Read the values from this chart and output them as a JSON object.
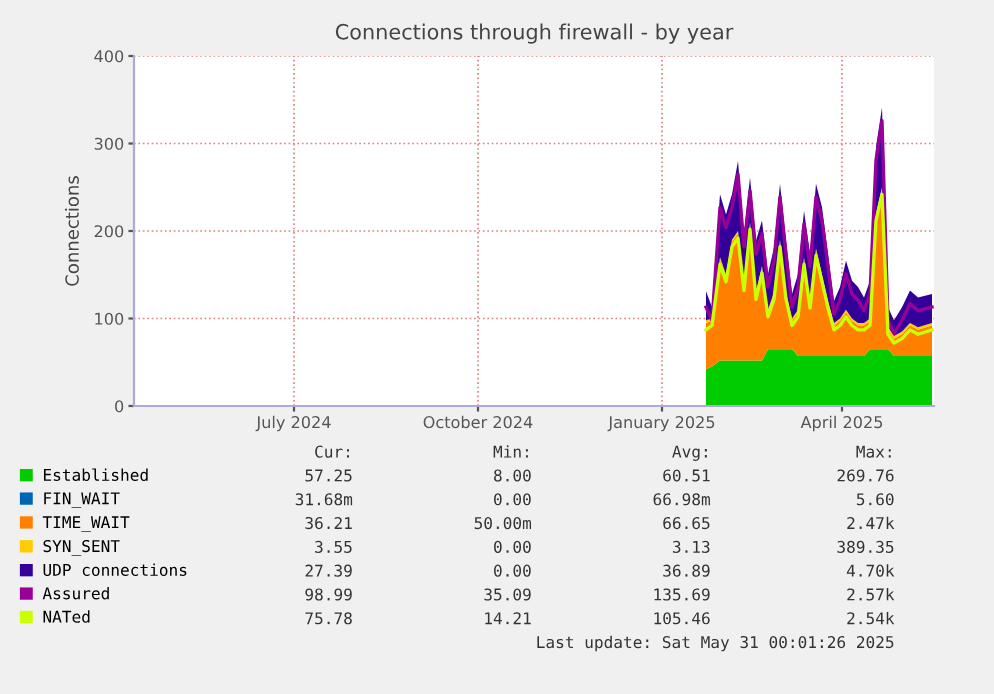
{
  "chart_data": {
    "type": "area",
    "title": "Connections through firewall - by year",
    "ylabel": "Connections",
    "stacked": true,
    "x": [
      "2025-02-07",
      "2025-02-10",
      "2025-02-14",
      "2025-02-17",
      "2025-02-20",
      "2025-02-23",
      "2025-02-26",
      "2025-03-01",
      "2025-03-04",
      "2025-03-07",
      "2025-03-10",
      "2025-03-13",
      "2025-03-16",
      "2025-03-19",
      "2025-03-22",
      "2025-03-25",
      "2025-03-28",
      "2025-03-31",
      "2025-04-03",
      "2025-04-06",
      "2025-04-09",
      "2025-04-12",
      "2025-04-15",
      "2025-04-18",
      "2025-04-21",
      "2025-04-24",
      "2025-04-27",
      "2025-04-30",
      "2025-05-03",
      "2025-05-06",
      "2025-05-09",
      "2025-05-12",
      "2025-05-16",
      "2025-05-20",
      "2025-05-24",
      "2025-05-31"
    ],
    "series": [
      {
        "name": "Established",
        "color": "#00cc00",
        "values": [
          42,
          45,
          52,
          52,
          52,
          52,
          52,
          52,
          52,
          52,
          65,
          65,
          65,
          65,
          65,
          57,
          57,
          57,
          57,
          57,
          57,
          57,
          57,
          57,
          57,
          57,
          57,
          65,
          65,
          65,
          65,
          57,
          57,
          57,
          57,
          57
        ]
      },
      {
        "name": "FIN_WAIT",
        "color": "#0066b3",
        "values": [
          null,
          null,
          null,
          null,
          null,
          null,
          null,
          null,
          null,
          null,
          null,
          null,
          null,
          null,
          null,
          null,
          null,
          null,
          null,
          null,
          null,
          null,
          null,
          null,
          null,
          null,
          null,
          null,
          null,
          null,
          null,
          null,
          null,
          null,
          null,
          null
        ]
      },
      {
        "name": "TIME_WAIT",
        "color": "#ff8000",
        "values": [
          53,
          52,
          115,
          95,
          135,
          145,
          85,
          155,
          75,
          105,
          42,
          62,
          122,
          62,
          32,
          50,
          110,
          60,
          120,
          90,
          60,
          35,
          40,
          50,
          40,
          35,
          35,
          32,
          152,
          182,
          22,
          20,
          25,
          35,
          30,
          35
        ]
      },
      {
        "name": "SYN_SENT",
        "color": "#ffcc00",
        "values": [
          3,
          3,
          3,
          3,
          3,
          3,
          3,
          3,
          3,
          3,
          3,
          3,
          3,
          3,
          3,
          3,
          3,
          3,
          3,
          3,
          3,
          3,
          3,
          3,
          3,
          3,
          3,
          3,
          3,
          3,
          3,
          3,
          3,
          3,
          3,
          3
        ]
      },
      {
        "name": "UDP connections",
        "color": "#330099",
        "values": [
          33,
          13,
          72,
          69,
          52,
          80,
          57,
          51,
          59,
          52,
          41,
          51,
          64,
          59,
          28,
          41,
          53,
          54,
          74,
          77,
          54,
          25,
          36,
          56,
          43,
          41,
          29,
          43,
          76,
          91,
          23,
          18,
          28,
          37,
          34,
          33
        ]
      },
      {
        "name": "Assured",
        "type": "line",
        "color": "#990099",
        "values": [
          113,
          98,
          227,
          204,
          227,
          265,
          182,
          246,
          174,
          197,
          136,
          166,
          239,
          174,
          113,
          136,
          208,
          159,
          239,
          212,
          159,
          105,
          121,
          151,
          128,
          121,
          109,
          128,
          281,
          326,
          98,
          83,
          98,
          117,
          109,
          113
        ]
      },
      {
        "name": "NATed",
        "type": "line",
        "color": "#ccff00",
        "values": [
          87,
          92,
          162,
          142,
          182,
          192,
          132,
          202,
          122,
          152,
          102,
          122,
          182,
          122,
          92,
          102,
          162,
          112,
          172,
          142,
          112,
          87,
          92,
          102,
          92,
          87,
          87,
          92,
          212,
          242,
          82,
          72,
          77,
          87,
          82,
          87
        ]
      }
    ],
    "xlim": [
      "2024-04-27",
      "2025-06-01"
    ],
    "xticks": [
      {
        "value": "2024-07-16",
        "label": "July 2024"
      },
      {
        "value": "2024-10-16",
        "label": "October 2024"
      },
      {
        "value": "2025-01-16",
        "label": "January 2025"
      },
      {
        "value": "2025-04-16",
        "label": "April 2025"
      }
    ],
    "ylim": [
      0,
      400
    ],
    "yticks": [
      0,
      100,
      200,
      300,
      400
    ],
    "grid": true,
    "legend": "bottom",
    "annotations": [
      "Cur:",
      "Min:",
      "Avg:",
      "Max:",
      "57.25",
      "8.00",
      "60.51",
      "269.76",
      "31.68m",
      "0.00",
      "66.98m",
      "5.60",
      "36.21",
      "50.00m",
      "66.65",
      "2.47k",
      "3.55",
      "0.00",
      "3.13",
      "389.35",
      "27.39",
      "0.00",
      "36.89",
      "4.70k",
      "98.99",
      "35.09",
      "135.69",
      "2.57k",
      "75.78",
      "14.21",
      "105.46",
      "2.54k",
      "Last update: Sat May 31 00:01:26 2025"
    ]
  }
}
